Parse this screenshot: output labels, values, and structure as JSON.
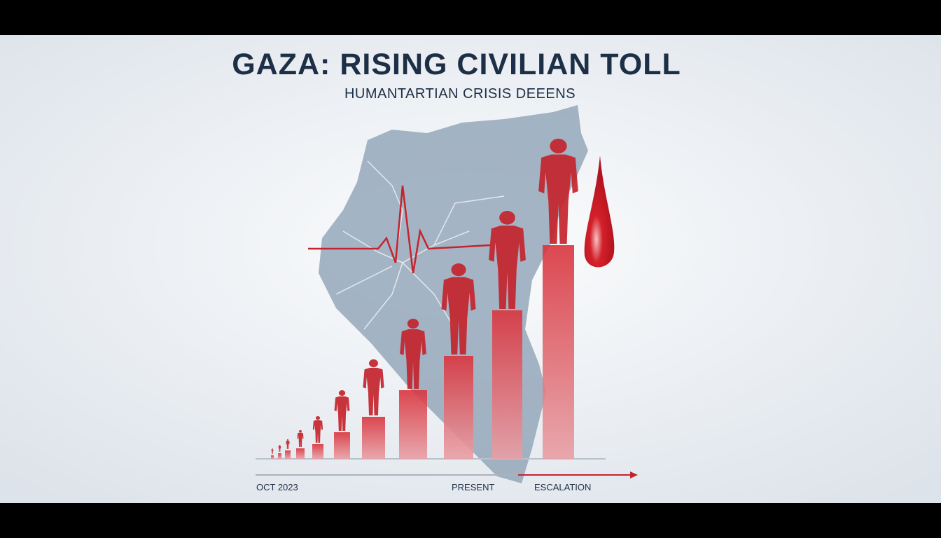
{
  "header": {
    "title": "GAZA: RISING CIVILIAN TOLL",
    "subtitle": "HUMANTARTIAN CRISIS DEEENS"
  },
  "timeline": {
    "start": "OCT 2023",
    "middle": "PRESENT",
    "end": "ESCALATION"
  }
}
